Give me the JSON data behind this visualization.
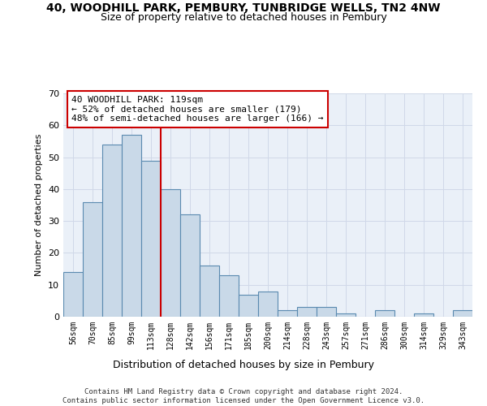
{
  "title_line1": "40, WOODHILL PARK, PEMBURY, TUNBRIDGE WELLS, TN2 4NW",
  "title_line2": "Size of property relative to detached houses in Pembury",
  "xlabel": "Distribution of detached houses by size in Pembury",
  "ylabel": "Number of detached properties",
  "bar_values": [
    14,
    36,
    54,
    57,
    49,
    40,
    32,
    16,
    13,
    7,
    8,
    2,
    3,
    3,
    1,
    0,
    2,
    0,
    1,
    0,
    2
  ],
  "bar_categories": [
    "56sqm",
    "70sqm",
    "85sqm",
    "99sqm",
    "113sqm",
    "128sqm",
    "142sqm",
    "156sqm",
    "171sqm",
    "185sqm",
    "200sqm",
    "214sqm",
    "228sqm",
    "243sqm",
    "257sqm",
    "271sqm",
    "286sqm",
    "300sqm",
    "314sqm",
    "329sqm",
    "343sqm"
  ],
  "bar_color": "#c9d9e8",
  "bar_edge_color": "#5a8ab0",
  "vline_color": "#cc0000",
  "annotation_text": "40 WOODHILL PARK: 119sqm\n← 52% of detached houses are smaller (179)\n48% of semi-detached houses are larger (166) →",
  "annotation_box_color": "#ffffff",
  "annotation_box_edge": "#cc0000",
  "ylim": [
    0,
    70
  ],
  "yticks": [
    0,
    10,
    20,
    30,
    40,
    50,
    60,
    70
  ],
  "grid_color": "#d0d8e8",
  "bg_color": "#eaf0f8",
  "footer": "Contains HM Land Registry data © Crown copyright and database right 2024.\nContains public sector information licensed under the Open Government Licence v3.0.",
  "title_fontsize": 10,
  "subtitle_fontsize": 9,
  "annot_fontsize": 8
}
